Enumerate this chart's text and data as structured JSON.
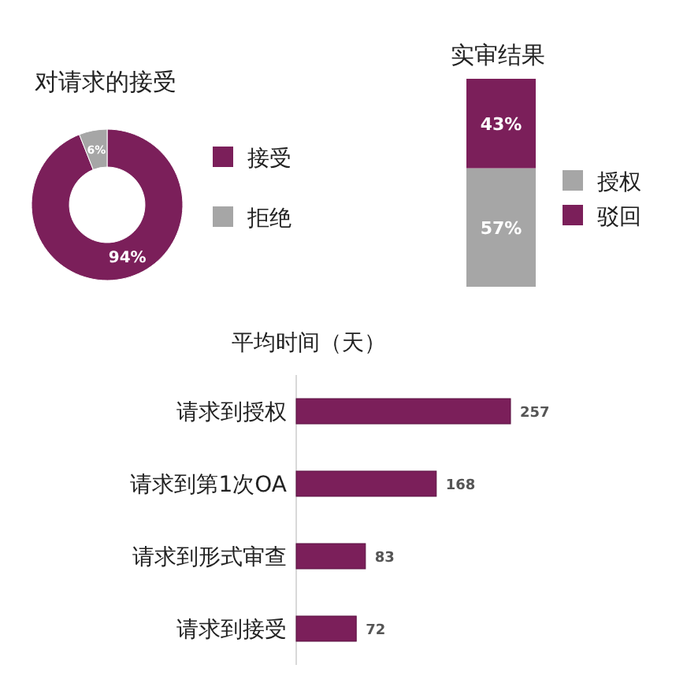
{
  "chart_data": [
    {
      "type": "donut",
      "title": "对请求的接受",
      "categories": [
        "接受",
        "拒绝"
      ],
      "values": [
        94,
        6
      ],
      "value_labels": [
        "94%",
        "6%"
      ],
      "colors": [
        "#7b1f5a",
        "#a6a6a6"
      ],
      "legend": "right"
    },
    {
      "type": "bar",
      "title": "实审结果",
      "categories": [
        null
      ],
      "stacked": true,
      "legend": "right",
      "series": [
        {
          "name": "授权",
          "color": "#a6a6a6",
          "values": [
            57
          ],
          "value_labels": [
            "57%"
          ]
        },
        {
          "name": "驳回",
          "color": "#7b1f5a",
          "values": [
            43
          ],
          "value_labels": [
            "43%"
          ]
        }
      ]
    },
    {
      "type": "bar",
      "title": "平均时间（天）",
      "orientation": "horizontal",
      "categories": [
        "请求到授权",
        "请求到第1次OA",
        "请求到形式审查",
        "请求到接受"
      ],
      "values": [
        257,
        168,
        83,
        72
      ],
      "color": "#7b1f5a",
      "data_labels": true
    }
  ]
}
